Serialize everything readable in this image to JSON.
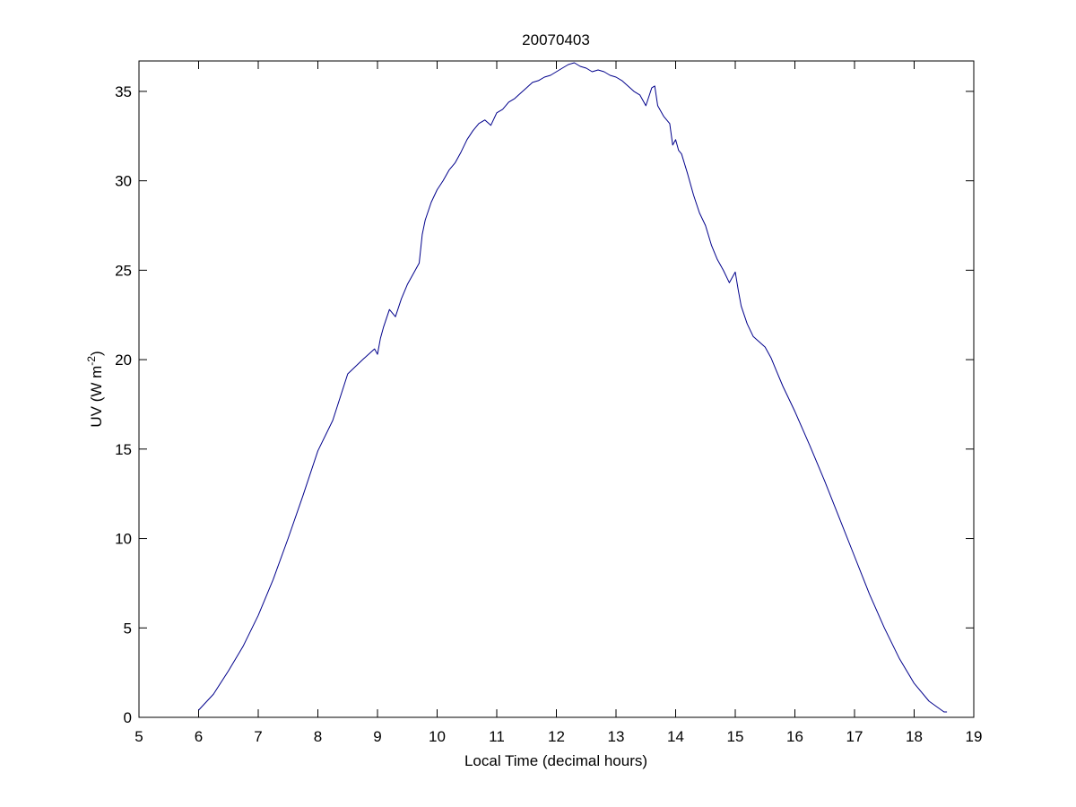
{
  "chart_data": {
    "type": "line",
    "title": "20070403",
    "xlabel": "Local Time (decimal hours)",
    "ylabel": {
      "base": "UV (W m",
      "superscript": "-2",
      "close": ")"
    },
    "xlim": [
      5,
      19
    ],
    "ylim": [
      0,
      36.7
    ],
    "xticks": [
      5,
      6,
      7,
      8,
      9,
      10,
      11,
      12,
      13,
      14,
      15,
      16,
      17,
      18,
      19
    ],
    "yticks": [
      0,
      5,
      10,
      15,
      20,
      25,
      30,
      35
    ],
    "grid": false,
    "legend": "none",
    "series": [
      {
        "color": "#00008b",
        "x": [
          6.0,
          6.25,
          6.5,
          6.75,
          7.0,
          7.25,
          7.5,
          7.75,
          8.0,
          8.25,
          8.5,
          8.75,
          8.95,
          9.0,
          9.05,
          9.1,
          9.2,
          9.3,
          9.4,
          9.5,
          9.6,
          9.7,
          9.75,
          9.8,
          9.9,
          10.0,
          10.1,
          10.2,
          10.3,
          10.4,
          10.5,
          10.6,
          10.7,
          10.8,
          10.9,
          11.0,
          11.1,
          11.2,
          11.3,
          11.4,
          11.5,
          11.6,
          11.7,
          11.8,
          11.9,
          12.0,
          12.1,
          12.2,
          12.3,
          12.4,
          12.5,
          12.6,
          12.7,
          12.8,
          12.9,
          13.0,
          13.1,
          13.2,
          13.3,
          13.4,
          13.5,
          13.6,
          13.65,
          13.7,
          13.8,
          13.9,
          13.95,
          14.0,
          14.05,
          14.1,
          14.2,
          14.3,
          14.4,
          14.5,
          14.6,
          14.7,
          14.8,
          14.9,
          15.0,
          15.05,
          15.1,
          15.2,
          15.3,
          15.4,
          15.5,
          15.6,
          15.7,
          15.8,
          15.9,
          16.0,
          16.25,
          16.5,
          16.75,
          17.0,
          17.25,
          17.5,
          17.75,
          18.0,
          18.25,
          18.5,
          18.55
        ],
        "y": [
          0.4,
          1.3,
          2.6,
          4.0,
          5.7,
          7.7,
          10.0,
          12.4,
          14.9,
          16.6,
          19.2,
          20.0,
          20.6,
          20.3,
          21.2,
          21.8,
          22.8,
          22.4,
          23.4,
          24.2,
          24.8,
          25.4,
          27.0,
          27.8,
          28.8,
          29.5,
          30.0,
          30.6,
          31.0,
          31.6,
          32.3,
          32.8,
          33.2,
          33.4,
          33.1,
          33.8,
          34.0,
          34.4,
          34.6,
          34.9,
          35.2,
          35.5,
          35.6,
          35.8,
          35.9,
          36.1,
          36.3,
          36.5,
          36.6,
          36.4,
          36.3,
          36.1,
          36.2,
          36.1,
          35.9,
          35.8,
          35.6,
          35.3,
          35.0,
          34.8,
          34.2,
          35.2,
          35.3,
          34.2,
          33.6,
          33.2,
          32.0,
          32.3,
          31.7,
          31.5,
          30.4,
          29.2,
          28.2,
          27.5,
          26.4,
          25.6,
          25.0,
          24.3,
          24.9,
          23.9,
          23.0,
          22.0,
          21.3,
          21.0,
          20.7,
          20.1,
          19.3,
          18.5,
          17.8,
          17.1,
          15.2,
          13.2,
          11.1,
          9.0,
          6.9,
          5.0,
          3.3,
          1.9,
          0.9,
          0.3,
          0.3
        ]
      }
    ]
  }
}
